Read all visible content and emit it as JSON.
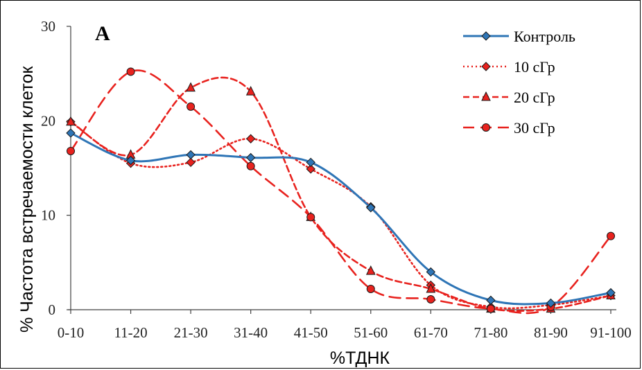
{
  "chart_data": {
    "type": "line",
    "panel_label": "A",
    "xlabel": "%ТДНК",
    "ylabel": "% Частота встречаемости клеток",
    "categories": [
      "0-10",
      "11-20",
      "21-30",
      "31-40",
      "41-50",
      "51-60",
      "61-70",
      "71-80",
      "81-90",
      "91-100"
    ],
    "ylim": [
      0,
      30
    ],
    "yticks": [
      0,
      10,
      20,
      30
    ],
    "legend_position": "top-right",
    "series": [
      {
        "name": "Контроль",
        "color": "#2e75b6",
        "line": "solid",
        "marker": "diamond",
        "values": [
          18.7,
          15.8,
          16.4,
          16.1,
          15.6,
          10.8,
          4.0,
          1.0,
          0.7,
          1.8
        ]
      },
      {
        "name": "10 сГр",
        "color": "#e8221e",
        "line": "dotted",
        "marker": "diamond",
        "values": [
          19.9,
          15.5,
          15.6,
          18.1,
          14.9,
          10.9,
          2.6,
          0.3,
          0.5,
          1.5
        ]
      },
      {
        "name": "20 сГр",
        "color": "#e8221e",
        "line": "dashed",
        "marker": "triangle",
        "values": [
          19.9,
          16.4,
          23.5,
          23.1,
          9.8,
          4.1,
          2.2,
          0.1,
          0.1,
          1.5
        ]
      },
      {
        "name": "30 сГр",
        "color": "#e8221e",
        "line": "longdash",
        "marker": "circle",
        "values": [
          16.8,
          25.2,
          21.5,
          15.2,
          9.8,
          2.2,
          1.1,
          0.1,
          0.3,
          7.8
        ]
      }
    ]
  }
}
